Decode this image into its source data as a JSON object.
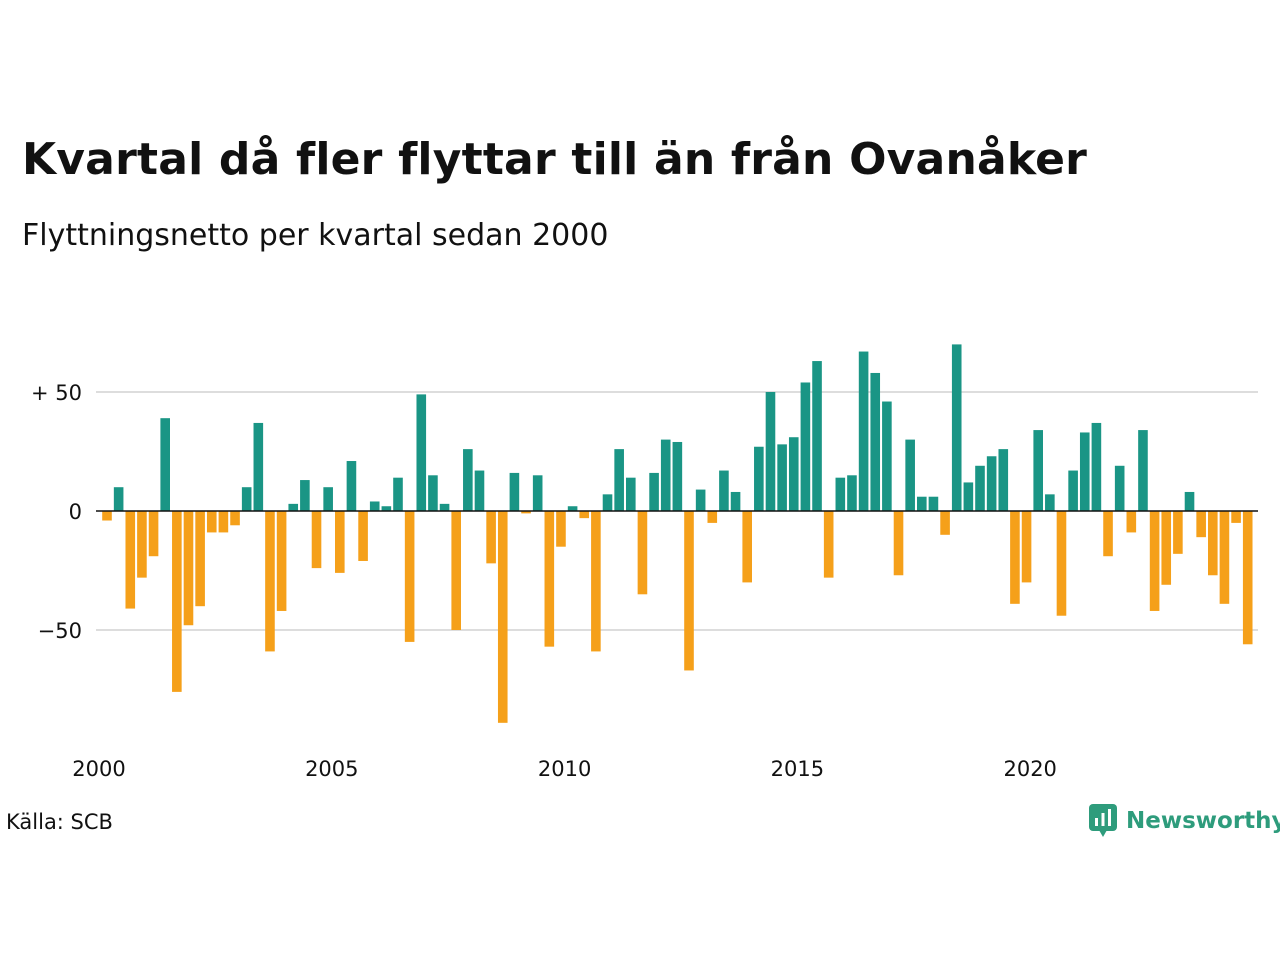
{
  "title": "Kvartal då fler flyttar till än från Ovanåker",
  "subtitle": "Flyttningsnetto per kvartal sedan 2000",
  "source": "Källa: SCB",
  "brand": {
    "name": "Newsworthy",
    "icon": "newsworthy-logo-icon"
  },
  "colors": {
    "positive": "#1a9585",
    "negative": "#f5a01a",
    "grid": "#dddddd",
    "zero_line": "#111111"
  },
  "chart_data": {
    "type": "bar",
    "title": "Kvartal då fler flyttar till än från Ovanåker",
    "subtitle": "Flyttningsnetto per kvartal sedan 2000",
    "xlabel": "",
    "ylabel": "",
    "x_ticks": [
      "2000",
      "2005",
      "2010",
      "2015",
      "2020"
    ],
    "y_ticks": [
      {
        "value": 50,
        "label": "+ 50"
      },
      {
        "value": 0,
        "label": "0"
      },
      {
        "value": -50,
        "label": "−50"
      }
    ],
    "ylim": [
      -90,
      70
    ],
    "grid": true,
    "start": "2000 Q1",
    "values": [
      -4,
      10,
      -41,
      -28,
      -19,
      39,
      -76,
      -48,
      -40,
      -9,
      -9,
      -6,
      10,
      37,
      -59,
      -42,
      3,
      13,
      -24,
      10,
      -26,
      21,
      -21,
      4,
      2,
      14,
      -55,
      49,
      15,
      3,
      -50,
      26,
      17,
      -22,
      -89,
      16,
      -1,
      15,
      -57,
      -15,
      2,
      -3,
      -59,
      7,
      26,
      14,
      -35,
      16,
      30,
      29,
      -67,
      9,
      -5,
      17,
      8,
      -30,
      27,
      50,
      28,
      31,
      54,
      63,
      -28,
      14,
      15,
      67,
      58,
      46,
      -27,
      30,
      6,
      6,
      -10,
      70,
      12,
      19,
      23,
      26,
      -39,
      -30,
      34,
      7,
      -44,
      17,
      33,
      37,
      -19,
      19,
      -9,
      34,
      -42,
      -31,
      -18,
      8,
      -11,
      -27,
      -39,
      -5,
      -56
    ]
  }
}
